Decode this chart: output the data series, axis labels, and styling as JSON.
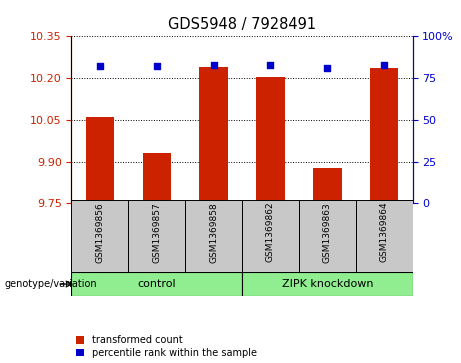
{
  "title": "GDS5948 / 7928491",
  "samples": [
    "GSM1369856",
    "GSM1369857",
    "GSM1369858",
    "GSM1369862",
    "GSM1369863",
    "GSM1369864"
  ],
  "red_values": [
    10.06,
    9.93,
    10.24,
    10.205,
    9.875,
    10.235
  ],
  "blue_values": [
    82,
    82,
    83,
    83,
    81,
    83
  ],
  "ylim_left": [
    9.75,
    10.35
  ],
  "ylim_right": [
    0,
    100
  ],
  "yticks_left": [
    9.75,
    9.9,
    10.05,
    10.2,
    10.35
  ],
  "yticks_right": [
    0,
    25,
    50,
    75,
    100
  ],
  "bar_color": "#cc2200",
  "dot_color": "#0000cc",
  "sample_bg_color": "#c8c8c8",
  "control_label": "control",
  "zipk_label": "ZIPK knockdown",
  "group_color": "#90EE90",
  "legend_red_label": "transformed count",
  "legend_blue_label": "percentile rank within the sample",
  "genotype_label": "genotype/variation",
  "title_fontsize": 10.5,
  "tick_fontsize": 8,
  "sample_fontsize": 6.5,
  "group_fontsize": 8,
  "legend_fontsize": 7
}
